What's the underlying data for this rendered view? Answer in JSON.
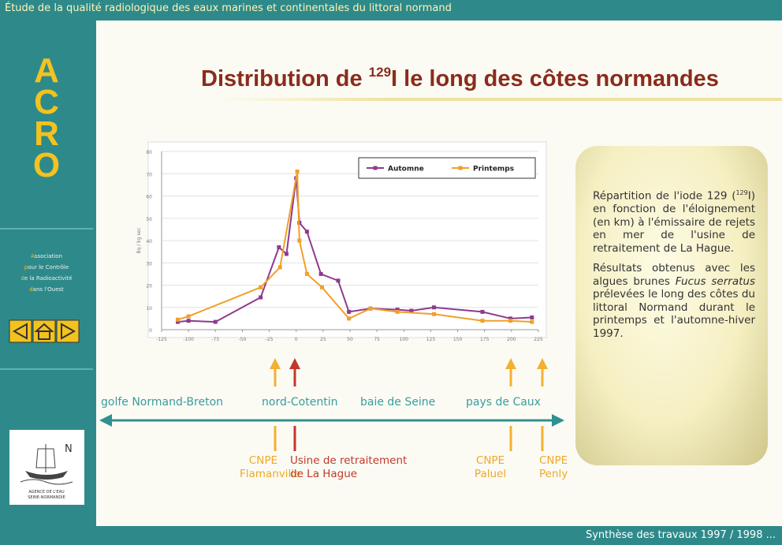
{
  "header": {
    "title": "Étude de la qualité radiologique des eaux marines et continentales du littoral normand"
  },
  "sidebar": {
    "logo_letters": [
      "A",
      "C",
      "R",
      "O"
    ],
    "association": [
      "Association",
      "pour le Contrôle",
      "de la Radioactivité",
      "dans l'Ouest"
    ],
    "agency_mark": "N",
    "agency": [
      "AGENCE DE L'EAU",
      "SEINE-NORMANDIE"
    ]
  },
  "slide_title": [
    "Distribution de ",
    "129",
    "I le long des côtes normandes"
  ],
  "chart_data": {
    "type": "line",
    "ylabel": "Bq / kg sec",
    "xlim": [
      -125,
      225
    ],
    "xticks": [
      -125,
      -100,
      -75,
      -50,
      -25,
      0,
      25,
      50,
      75,
      100,
      125,
      150,
      175,
      200,
      225
    ],
    "ylim": [
      0,
      80
    ],
    "yticks": [
      0,
      10,
      20,
      30,
      40,
      50,
      60,
      70,
      80
    ],
    "grid": true,
    "legend": "top-right",
    "series": [
      {
        "name": "Automne",
        "color": "#8e3a8e",
        "x": [
          -110,
          -100,
          -75,
          -33,
          -16,
          -9,
          0,
          3,
          10,
          23,
          39,
          49,
          69,
          94,
          107,
          128,
          173,
          199,
          219
        ],
        "values": [
          3.5,
          4,
          3.5,
          14.5,
          37,
          34,
          68,
          48,
          44,
          25,
          22,
          8,
          9.5,
          9,
          8.5,
          10,
          8,
          5,
          5.5
        ]
      },
      {
        "name": "Printemps",
        "color": "#f0a028",
        "x": [
          -110,
          -100,
          -33,
          -15,
          1,
          3,
          10,
          24,
          49,
          69,
          94,
          128,
          173,
          199,
          219
        ],
        "values": [
          4.5,
          6,
          19,
          28,
          71,
          40,
          25,
          19,
          5,
          9.5,
          8,
          7,
          4,
          4,
          3.5
        ]
      }
    ]
  },
  "regions": [
    "golfe Normand-Breton",
    "nord-Cotentin",
    "baie de Seine",
    "pays de Caux"
  ],
  "sites": [
    {
      "lines": [
        "CNPE",
        "Flamanville"
      ]
    },
    {
      "lines": [
        "Usine de retraitement",
        "de La Hague"
      ]
    },
    {
      "lines": [
        "CNPE",
        "Paluel"
      ]
    },
    {
      "lines": [
        "CNPE",
        "Penly"
      ]
    }
  ],
  "description": {
    "paragraph1": [
      "Répartition de l'iode 129 (",
      "129",
      "I) en fonction de l'éloignement (en km) à l'émissaire de rejets en mer de l'usine de retraitement de La Hague."
    ],
    "paragraph2": [
      "Résultats obtenus avec les algues brunes ",
      "Fucus serratus",
      " prélevées le long des côtes du littoral Normand durant le printemps et l'automne-hiver 1997."
    ]
  },
  "footer": {
    "text": "Synthèse des travaux 1997 / 1998 ..."
  }
}
